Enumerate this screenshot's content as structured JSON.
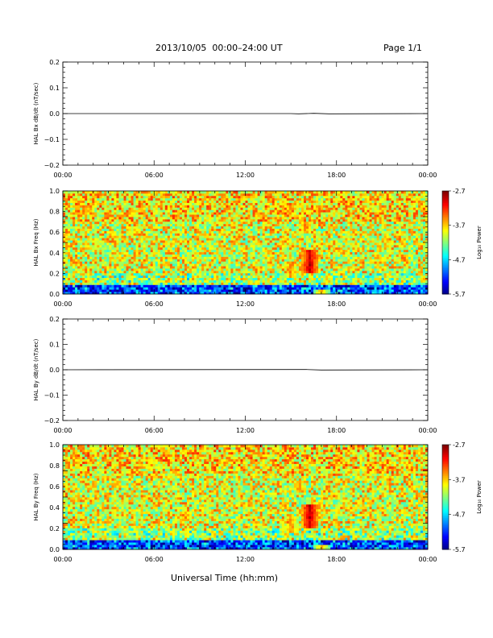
{
  "header": {
    "title": "2013/10/05  00:00–24:00 UT",
    "page": "Page 1/1"
  },
  "footer": {
    "xlabel": "Universal Time (hh:mm)"
  },
  "colorbar": {
    "label": "Log₁₀ Power",
    "ticks": [
      "-2.7",
      "-3.7",
      "-4.7",
      "-5.7"
    ],
    "tick_values": [
      -2.7,
      -3.7,
      -4.7,
      -5.7
    ],
    "range": [
      -5.7,
      -2.7
    ]
  },
  "chart_data": [
    {
      "type": "line",
      "title": "",
      "ylabel": "HAL Bx dB/dt (nT/sec)",
      "xlabel": "",
      "xlim": [
        "00:00",
        "24:00"
      ],
      "x_ticks": [
        "00:00",
        "06:00",
        "12:00",
        "18:00",
        "00:00"
      ],
      "ylim": [
        -0.2,
        0.2
      ],
      "y_ticks": [
        "0.2",
        "0.1",
        "0.0",
        "−0.1",
        "−0.2"
      ],
      "y_tick_values": [
        0.2,
        0.1,
        0.0,
        -0.1,
        -0.2
      ],
      "series": [
        {
          "x": [
            "00:00",
            "15:00",
            "15:30",
            "16:30",
            "17:30",
            "24:00"
          ],
          "values": [
            0.0,
            0.0,
            -0.001,
            0.001,
            -0.001,
            0.0
          ]
        }
      ]
    },
    {
      "type": "heatmap",
      "title": "",
      "ylabel": "HAL Bx Freq (Hz)",
      "xlabel": "",
      "xlim": [
        "00:00",
        "24:00"
      ],
      "x_ticks": [
        "00:00",
        "06:00",
        "12:00",
        "18:00",
        "00:00"
      ],
      "ylim": [
        0.0,
        1.0
      ],
      "y_ticks": [
        "1.0",
        "0.8",
        "0.6",
        "0.4",
        "0.2",
        "0.0"
      ],
      "y_tick_values": [
        1.0,
        0.8,
        0.6,
        0.4,
        0.2,
        0.0
      ],
      "color_range": [
        -5.7,
        -2.7
      ],
      "background_level": -3.9,
      "features": [
        {
          "time": "16:15",
          "freq_low": 0.22,
          "freq_high": 0.42,
          "level": -2.9
        },
        {
          "time": "15:00",
          "freq_low": 0.18,
          "freq_high": 0.3,
          "level": -3.5
        },
        {
          "time": "16:00",
          "freq_low": 0.6,
          "freq_high": 0.68,
          "level": -3.5
        },
        {
          "time": "17:00",
          "freq_low": 0.0,
          "freq_high": 0.03,
          "level": -3.6
        }
      ]
    },
    {
      "type": "line",
      "title": "",
      "ylabel": "HAL By dB/dt (nT/sec)",
      "xlabel": "",
      "xlim": [
        "00:00",
        "24:00"
      ],
      "x_ticks": [
        "00:00",
        "06:00",
        "12:00",
        "18:00",
        "00:00"
      ],
      "ylim": [
        -0.2,
        0.2
      ],
      "y_ticks": [
        "0.2",
        "0.1",
        "0.0",
        "−0.1",
        "−0.2"
      ],
      "y_tick_values": [
        0.2,
        0.1,
        0.0,
        -0.1,
        -0.2
      ],
      "series": [
        {
          "x": [
            "00:00",
            "16:00",
            "17:00",
            "24:00"
          ],
          "values": [
            0.0,
            0.001,
            -0.001,
            0.0
          ]
        }
      ]
    },
    {
      "type": "heatmap",
      "title": "",
      "ylabel": "HAL By Freq (Hz)",
      "xlabel": "",
      "xlim": [
        "00:00",
        "24:00"
      ],
      "x_ticks": [
        "00:00",
        "06:00",
        "12:00",
        "18:00",
        "00:00"
      ],
      "ylim": [
        0.0,
        1.0
      ],
      "y_ticks": [
        "1.0",
        "0.8",
        "0.6",
        "0.4",
        "0.2",
        "0.0"
      ],
      "y_tick_values": [
        1.0,
        0.8,
        0.6,
        0.4,
        0.2,
        0.0
      ],
      "color_range": [
        -5.7,
        -2.7
      ],
      "background_level": -3.9,
      "features": [
        {
          "time": "16:15",
          "freq_low": 0.22,
          "freq_high": 0.42,
          "level": -2.9
        },
        {
          "time": "15:00",
          "freq_low": 0.18,
          "freq_high": 0.3,
          "level": -3.5
        },
        {
          "time": "15:30",
          "freq_low": 0.58,
          "freq_high": 0.64,
          "level": -3.5
        },
        {
          "time": "08:00",
          "freq_low": 0.3,
          "freq_high": 0.34,
          "level": -3.6
        },
        {
          "time": "17:00",
          "freq_low": 0.0,
          "freq_high": 0.03,
          "level": -3.6
        }
      ]
    }
  ]
}
